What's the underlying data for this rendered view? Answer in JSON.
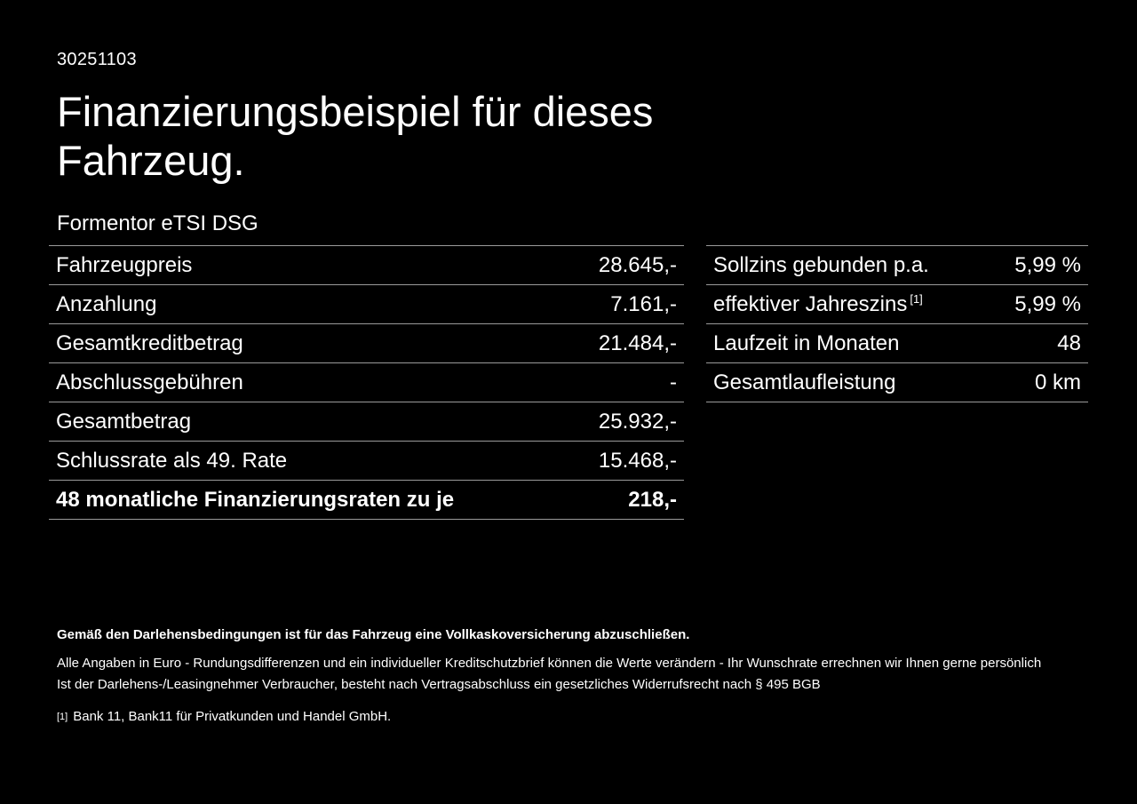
{
  "page": {
    "bg_color": "#000000",
    "text_color": "#ffffff",
    "divider_color": "#9a9a9a"
  },
  "header": {
    "doc_id": "30251103",
    "title": "Finanzierungsbeispiel für dieses Fahrzeug.",
    "vehicle_model": "Formentor eTSI DSG"
  },
  "finance_table": {
    "rows": [
      {
        "label": "Fahrzeugpreis",
        "value": "28.645,-"
      },
      {
        "label": "Anzahlung",
        "value": "7.161,-"
      },
      {
        "label": "Gesamtkreditbetrag",
        "value": "21.484,-"
      },
      {
        "label": "Abschlussgebühren",
        "value": "-"
      },
      {
        "label": "Gesamtbetrag",
        "value": "25.932,-"
      },
      {
        "label": "Schlussrate als 49. Rate",
        "value": "15.468,-"
      },
      {
        "label": "48 monatliche Finanzierungsraten zu je",
        "value": "218,-"
      }
    ]
  },
  "conditions_table": {
    "rows": [
      {
        "label": "Sollzins gebunden p.a.",
        "sup": "",
        "value": "5,99 %"
      },
      {
        "label": "effektiver Jahreszins",
        "sup": "[1]",
        "value": "5,99 %"
      },
      {
        "label": "Laufzeit in Monaten",
        "sup": "",
        "value": "48"
      },
      {
        "label": "Gesamtlaufleistung",
        "sup": "",
        "value": "0 km"
      }
    ]
  },
  "footer": {
    "bold_note": "Gemäß den Darlehensbedingungen ist für das Fahrzeug eine Vollkaskoversicherung abzuschließen.",
    "note_line1": "Alle Angaben in Euro - Rundungsdifferenzen und ein individueller Kreditschutzbrief können die Werte verändern - Ihr Wunschrate errechnen wir Ihnen gerne persönlich",
    "note_line2": "Ist der Darlehens-/Leasingnehmer Verbraucher, besteht nach Vertragsabschluss ein gesetzliches Widerrufsrecht nach § 495 BGB",
    "footnote_marker": "[1]",
    "footnote_text": "Bank 11, Bank11 für Privatkunden und Handel GmbH."
  }
}
